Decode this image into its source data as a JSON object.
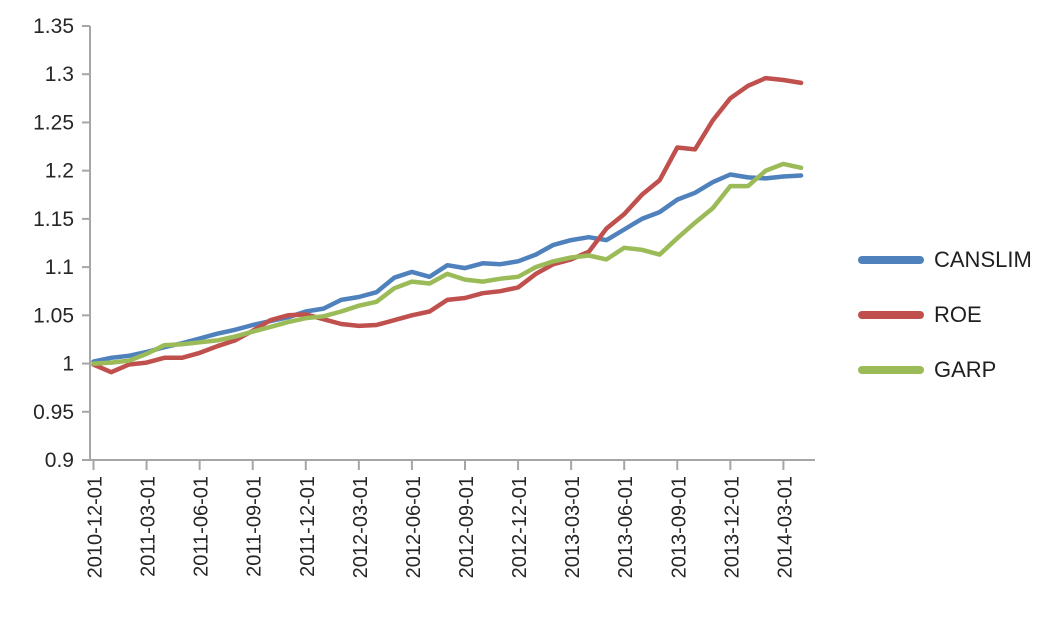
{
  "chart_data": {
    "type": "line",
    "title": "",
    "xlabel": "",
    "ylabel": "",
    "grid": false,
    "legend_position": "right",
    "ylim": [
      0.9,
      1.35
    ],
    "y_step": 0.05,
    "y_tick_labels": [
      "0.9",
      "0.95",
      "1",
      "1.05",
      "1.1",
      "1.15",
      "1.2",
      "1.25",
      "1.3",
      "1.35"
    ],
    "x": [
      "2010-12-01",
      "2011-01-01",
      "2011-02-01",
      "2011-03-01",
      "2011-04-01",
      "2011-05-01",
      "2011-06-01",
      "2011-07-01",
      "2011-08-01",
      "2011-09-01",
      "2011-10-01",
      "2011-11-01",
      "2011-12-01",
      "2012-01-01",
      "2012-02-01",
      "2012-03-01",
      "2012-04-01",
      "2012-05-01",
      "2012-06-01",
      "2012-07-01",
      "2012-08-01",
      "2012-09-01",
      "2012-10-01",
      "2012-11-01",
      "2012-12-01",
      "2013-01-01",
      "2013-02-01",
      "2013-03-01",
      "2013-04-01",
      "2013-05-01",
      "2013-06-01",
      "2013-07-01",
      "2013-08-01",
      "2013-09-01",
      "2013-10-01",
      "2013-11-01",
      "2013-12-01",
      "2014-01-01",
      "2014-02-01",
      "2014-03-01",
      "2014-04-01"
    ],
    "x_tick_every": 3,
    "x_tick_labels": [
      "2010-12-01",
      "2011-03-01",
      "2011-06-01",
      "2011-09-01",
      "2011-12-01",
      "2012-03-01",
      "2012-06-01",
      "2012-09-01",
      "2012-12-01",
      "2013-03-01",
      "2013-06-01",
      "2013-09-01",
      "2013-12-01",
      "2014-03-01"
    ],
    "series": [
      {
        "name": "CANSLIM",
        "color": "#4F81BD",
        "values": [
          1.002,
          1.006,
          1.008,
          1.012,
          1.017,
          1.021,
          1.026,
          1.031,
          1.035,
          1.04,
          1.044,
          1.048,
          1.054,
          1.057,
          1.066,
          1.069,
          1.074,
          1.089,
          1.095,
          1.09,
          1.102,
          1.099,
          1.104,
          1.103,
          1.106,
          1.113,
          1.123,
          1.128,
          1.131,
          1.128,
          1.139,
          1.15,
          1.157,
          1.17,
          1.177,
          1.188,
          1.196,
          1.193,
          1.192,
          1.194,
          1.195
        ]
      },
      {
        "name": "ROE",
        "color": "#C0504D",
        "values": [
          0.999,
          0.991,
          0.999,
          1.001,
          1.006,
          1.006,
          1.011,
          1.018,
          1.024,
          1.034,
          1.045,
          1.05,
          1.051,
          1.046,
          1.041,
          1.039,
          1.04,
          1.045,
          1.05,
          1.054,
          1.066,
          1.068,
          1.073,
          1.075,
          1.079,
          1.093,
          1.103,
          1.108,
          1.116,
          1.14,
          1.155,
          1.175,
          1.19,
          1.224,
          1.222,
          1.252,
          1.275,
          1.288,
          1.296,
          1.294,
          1.291
        ]
      },
      {
        "name": "GARP",
        "color": "#9BBB59",
        "values": [
          1.0,
          1.001,
          1.003,
          1.01,
          1.019,
          1.02,
          1.022,
          1.024,
          1.028,
          1.033,
          1.038,
          1.043,
          1.047,
          1.049,
          1.054,
          1.06,
          1.064,
          1.078,
          1.085,
          1.083,
          1.093,
          1.087,
          1.085,
          1.088,
          1.09,
          1.1,
          1.106,
          1.11,
          1.112,
          1.108,
          1.12,
          1.118,
          1.113,
          1.13,
          1.146,
          1.161,
          1.184,
          1.184,
          1.2,
          1.207,
          1.203
        ]
      }
    ],
    "axis_color": "#A6A6A6",
    "text_color": "#262626"
  }
}
